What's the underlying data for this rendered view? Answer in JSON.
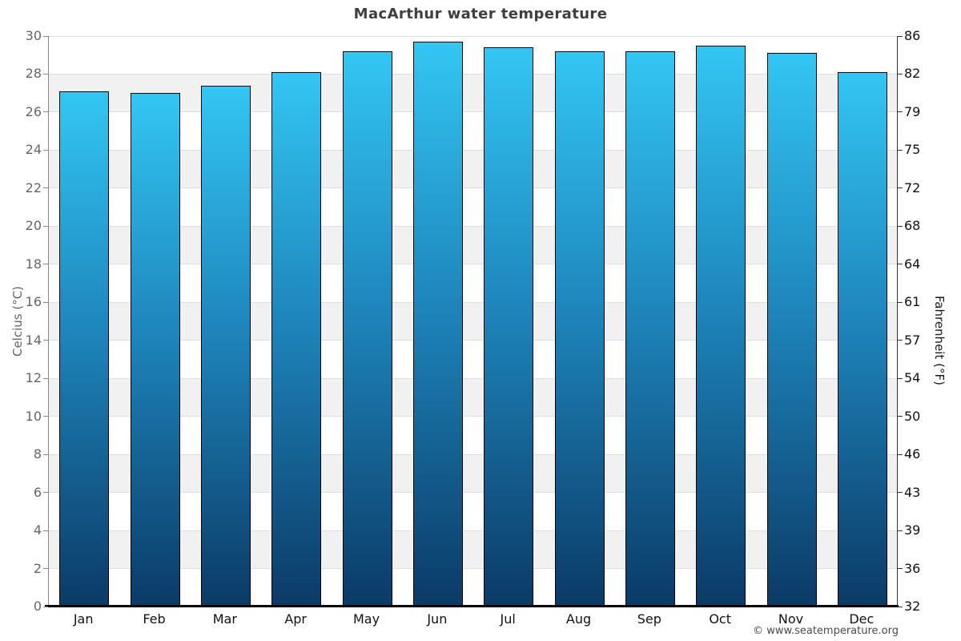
{
  "title": "MacArthur water temperature",
  "attribution": "© www.seatemperature.org",
  "chart_data": {
    "type": "bar",
    "title": "MacArthur water temperature",
    "categories": [
      "Jan",
      "Feb",
      "Mar",
      "Apr",
      "May",
      "Jun",
      "Jul",
      "Aug",
      "Sep",
      "Oct",
      "Nov",
      "Dec"
    ],
    "values": [
      27.1,
      27.0,
      27.4,
      28.1,
      29.2,
      29.7,
      29.4,
      29.2,
      29.2,
      29.5,
      29.1,
      28.1
    ],
    "unit": "°C",
    "ylabel_left": "Celcius (°C)",
    "ylabel_right": "Fahrenheit (°F)",
    "ylim": [
      0,
      30
    ],
    "yticks_celsius": [
      0,
      2,
      4,
      6,
      8,
      10,
      12,
      14,
      16,
      18,
      20,
      22,
      24,
      26,
      28,
      30
    ],
    "yticks_fahrenheit": [
      32,
      36,
      39,
      43,
      46,
      50,
      54,
      57,
      61,
      64,
      68,
      72,
      75,
      79,
      82,
      86
    ],
    "grid": "horizontal gridlines every 2°C with alternating band shading",
    "legend": "none",
    "colors": {
      "bar_gradient_top": "#33c6f4",
      "bar_gradient_mid": "#1e86bc",
      "bar_gradient_bottom": "#0b3a66",
      "bar_border": "#000000",
      "band_shade": "#f1f1f1",
      "gridline": "#dedede",
      "axis_left": "#888888",
      "axis_bottom": "#000000",
      "axis_right": "#333333",
      "tick_label_left": "#666666",
      "tick_label_right": "#111111",
      "title_text": "#3f3f3f"
    }
  }
}
